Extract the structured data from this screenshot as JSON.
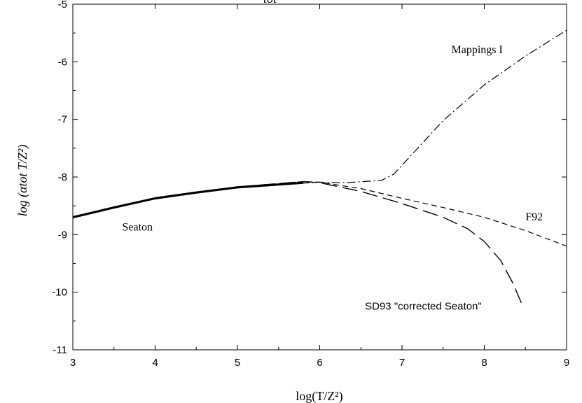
{
  "chart_data": {
    "type": "line",
    "title": "",
    "xlabel": "log(T/Z²)",
    "ylabel": "log (αtot T/Z²)",
    "xlim": [
      3,
      9
    ],
    "ylim": [
      -11,
      -5
    ],
    "x_ticks": [
      3,
      4,
      5,
      6,
      7,
      8,
      9
    ],
    "y_ticks": [
      -11,
      -10,
      -9,
      -8,
      -7,
      -6,
      -5
    ],
    "x_tick_labels": [
      "3",
      "4",
      "5",
      "6",
      "7",
      "8",
      "9"
    ],
    "y_tick_labels": [
      "-11",
      "-10",
      "-9",
      "-8",
      "-7",
      "-6",
      "-5"
    ],
    "grid": false,
    "series": [
      {
        "name": "Seaton",
        "style": "solid-thick",
        "x": [
          3.0,
          3.5,
          4.0,
          4.5,
          5.0,
          5.5,
          5.8
        ],
        "y": [
          -8.7,
          -8.53,
          -8.37,
          -8.27,
          -8.18,
          -8.13,
          -8.1
        ]
      },
      {
        "name": "Mappings I",
        "style": "dash-dot",
        "x": [
          3.0,
          4.0,
          5.0,
          6.0,
          6.3,
          6.75,
          6.9,
          7.5,
          8.0,
          8.5,
          9.0
        ],
        "y": [
          -8.7,
          -8.37,
          -8.17,
          -8.09,
          -8.1,
          -8.06,
          -7.95,
          -7.02,
          -6.4,
          -5.9,
          -5.45
        ]
      },
      {
        "name": "F92",
        "style": "short-dash",
        "x": [
          3.0,
          4.0,
          5.0,
          5.8,
          6.0,
          6.5,
          7.0,
          7.5,
          8.0,
          8.5,
          9.0
        ],
        "y": [
          -8.7,
          -8.37,
          -8.17,
          -8.08,
          -8.09,
          -8.2,
          -8.37,
          -8.53,
          -8.7,
          -8.93,
          -9.2
        ]
      },
      {
        "name": "SD93 \"corrected Seaton\"",
        "style": "long-dash",
        "x": [
          3.0,
          4.0,
          5.0,
          5.8,
          6.0,
          6.5,
          7.0,
          7.5,
          7.8,
          8.0,
          8.2,
          8.35,
          8.47
        ],
        "y": [
          -8.7,
          -8.37,
          -8.17,
          -8.08,
          -8.1,
          -8.25,
          -8.46,
          -8.7,
          -8.9,
          -9.12,
          -9.45,
          -9.85,
          -10.25
        ]
      }
    ],
    "annotations": [
      {
        "text": "Mappings I",
        "x": 7.6,
        "y": -5.85
      },
      {
        "text": "F92",
        "x": 8.5,
        "y": -8.75
      },
      {
        "text": "SD93 \"corrected Seaton\"",
        "x": 6.55,
        "y": -10.3
      },
      {
        "text": "Seaton",
        "x": 3.6,
        "y": -8.93
      }
    ],
    "top_label_fragment": "tot"
  }
}
